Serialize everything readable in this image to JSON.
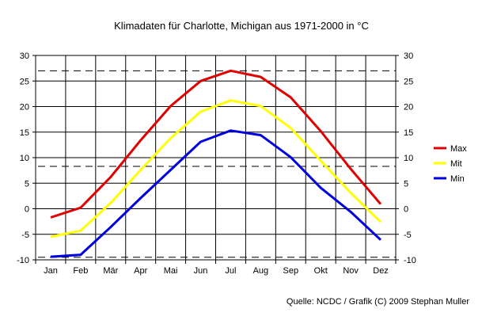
{
  "chart_data": {
    "type": "line",
    "title": "Klimadaten für Charlotte, Michigan aus 1971-2000 in °C",
    "categories": [
      "Jan",
      "Feb",
      "Mär",
      "Apr",
      "Mai",
      "Jun",
      "Jul",
      "Aug",
      "Sep",
      "Okt",
      "Nov",
      "Dez"
    ],
    "ylim": [
      -10,
      30
    ],
    "yticks": [
      "-10",
      "-5",
      "0",
      "5",
      "10",
      "15",
      "20",
      "25",
      "30"
    ],
    "grid": true,
    "reference_lines": [
      27,
      8.3,
      -9.5
    ],
    "series": [
      {
        "name": "Max",
        "color": "#e00000",
        "values": [
          -1.7,
          0.2,
          6.2,
          13.4,
          20.1,
          25.0,
          27.0,
          25.8,
          21.8,
          15.2,
          7.8,
          0.9
        ]
      },
      {
        "name": "Mit",
        "color": "#ffff00",
        "values": [
          -5.5,
          -4.3,
          1.1,
          7.6,
          13.8,
          19.0,
          21.2,
          20.1,
          15.8,
          9.4,
          3.1,
          -2.6
        ]
      },
      {
        "name": "Min",
        "color": "#0000e0",
        "values": [
          -9.4,
          -9.0,
          -3.6,
          2.1,
          7.6,
          13.1,
          15.3,
          14.4,
          10.1,
          4.1,
          -0.6,
          -6.1
        ]
      }
    ],
    "legend_position": "right",
    "source": "Quelle: NCDC / Grafik (C) 2009 Stephan Muller"
  }
}
